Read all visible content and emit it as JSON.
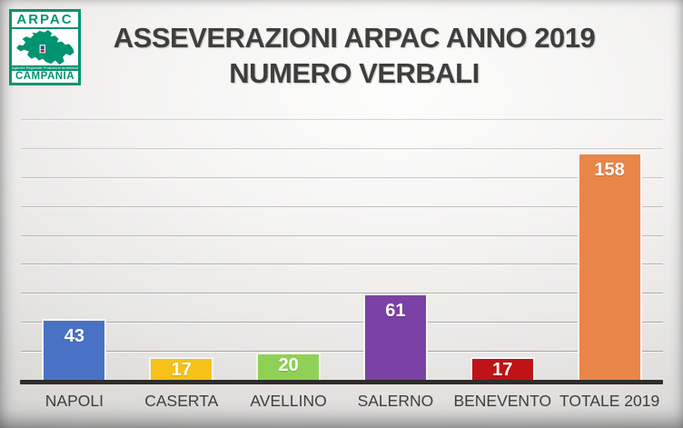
{
  "logo": {
    "name": "ARPAC",
    "agency_line": "Agenzia Regionale Protezione Ambientale",
    "region": "CAMPANIA",
    "green": "#009471"
  },
  "title": {
    "line1": "ASSEVERAZIONI ARPAC ANNO 2019",
    "line2": "NUMERO VERBALI"
  },
  "chart_data": {
    "type": "bar",
    "title": "ASSEVERAZIONI ARPAC ANNO 2019 NUMERO VERBALI",
    "categories": [
      "NAPOLI",
      "CASERTA",
      "AVELLINO",
      "SALERNO",
      "BENEVENTO",
      "TOTALE 2019"
    ],
    "values": [
      43,
      17,
      20,
      61,
      17,
      158
    ],
    "bar_colors": [
      "#4a72c4",
      "#f6c118",
      "#90d155",
      "#7b41a4",
      "#c01317",
      "#e98549"
    ],
    "value_label_color": "#ffffff",
    "xlabel": "",
    "ylabel": "",
    "ylim": [
      0,
      180
    ],
    "gridline_step": 20,
    "grid": true,
    "legend": false,
    "axis_color": "#2e2d2c"
  }
}
